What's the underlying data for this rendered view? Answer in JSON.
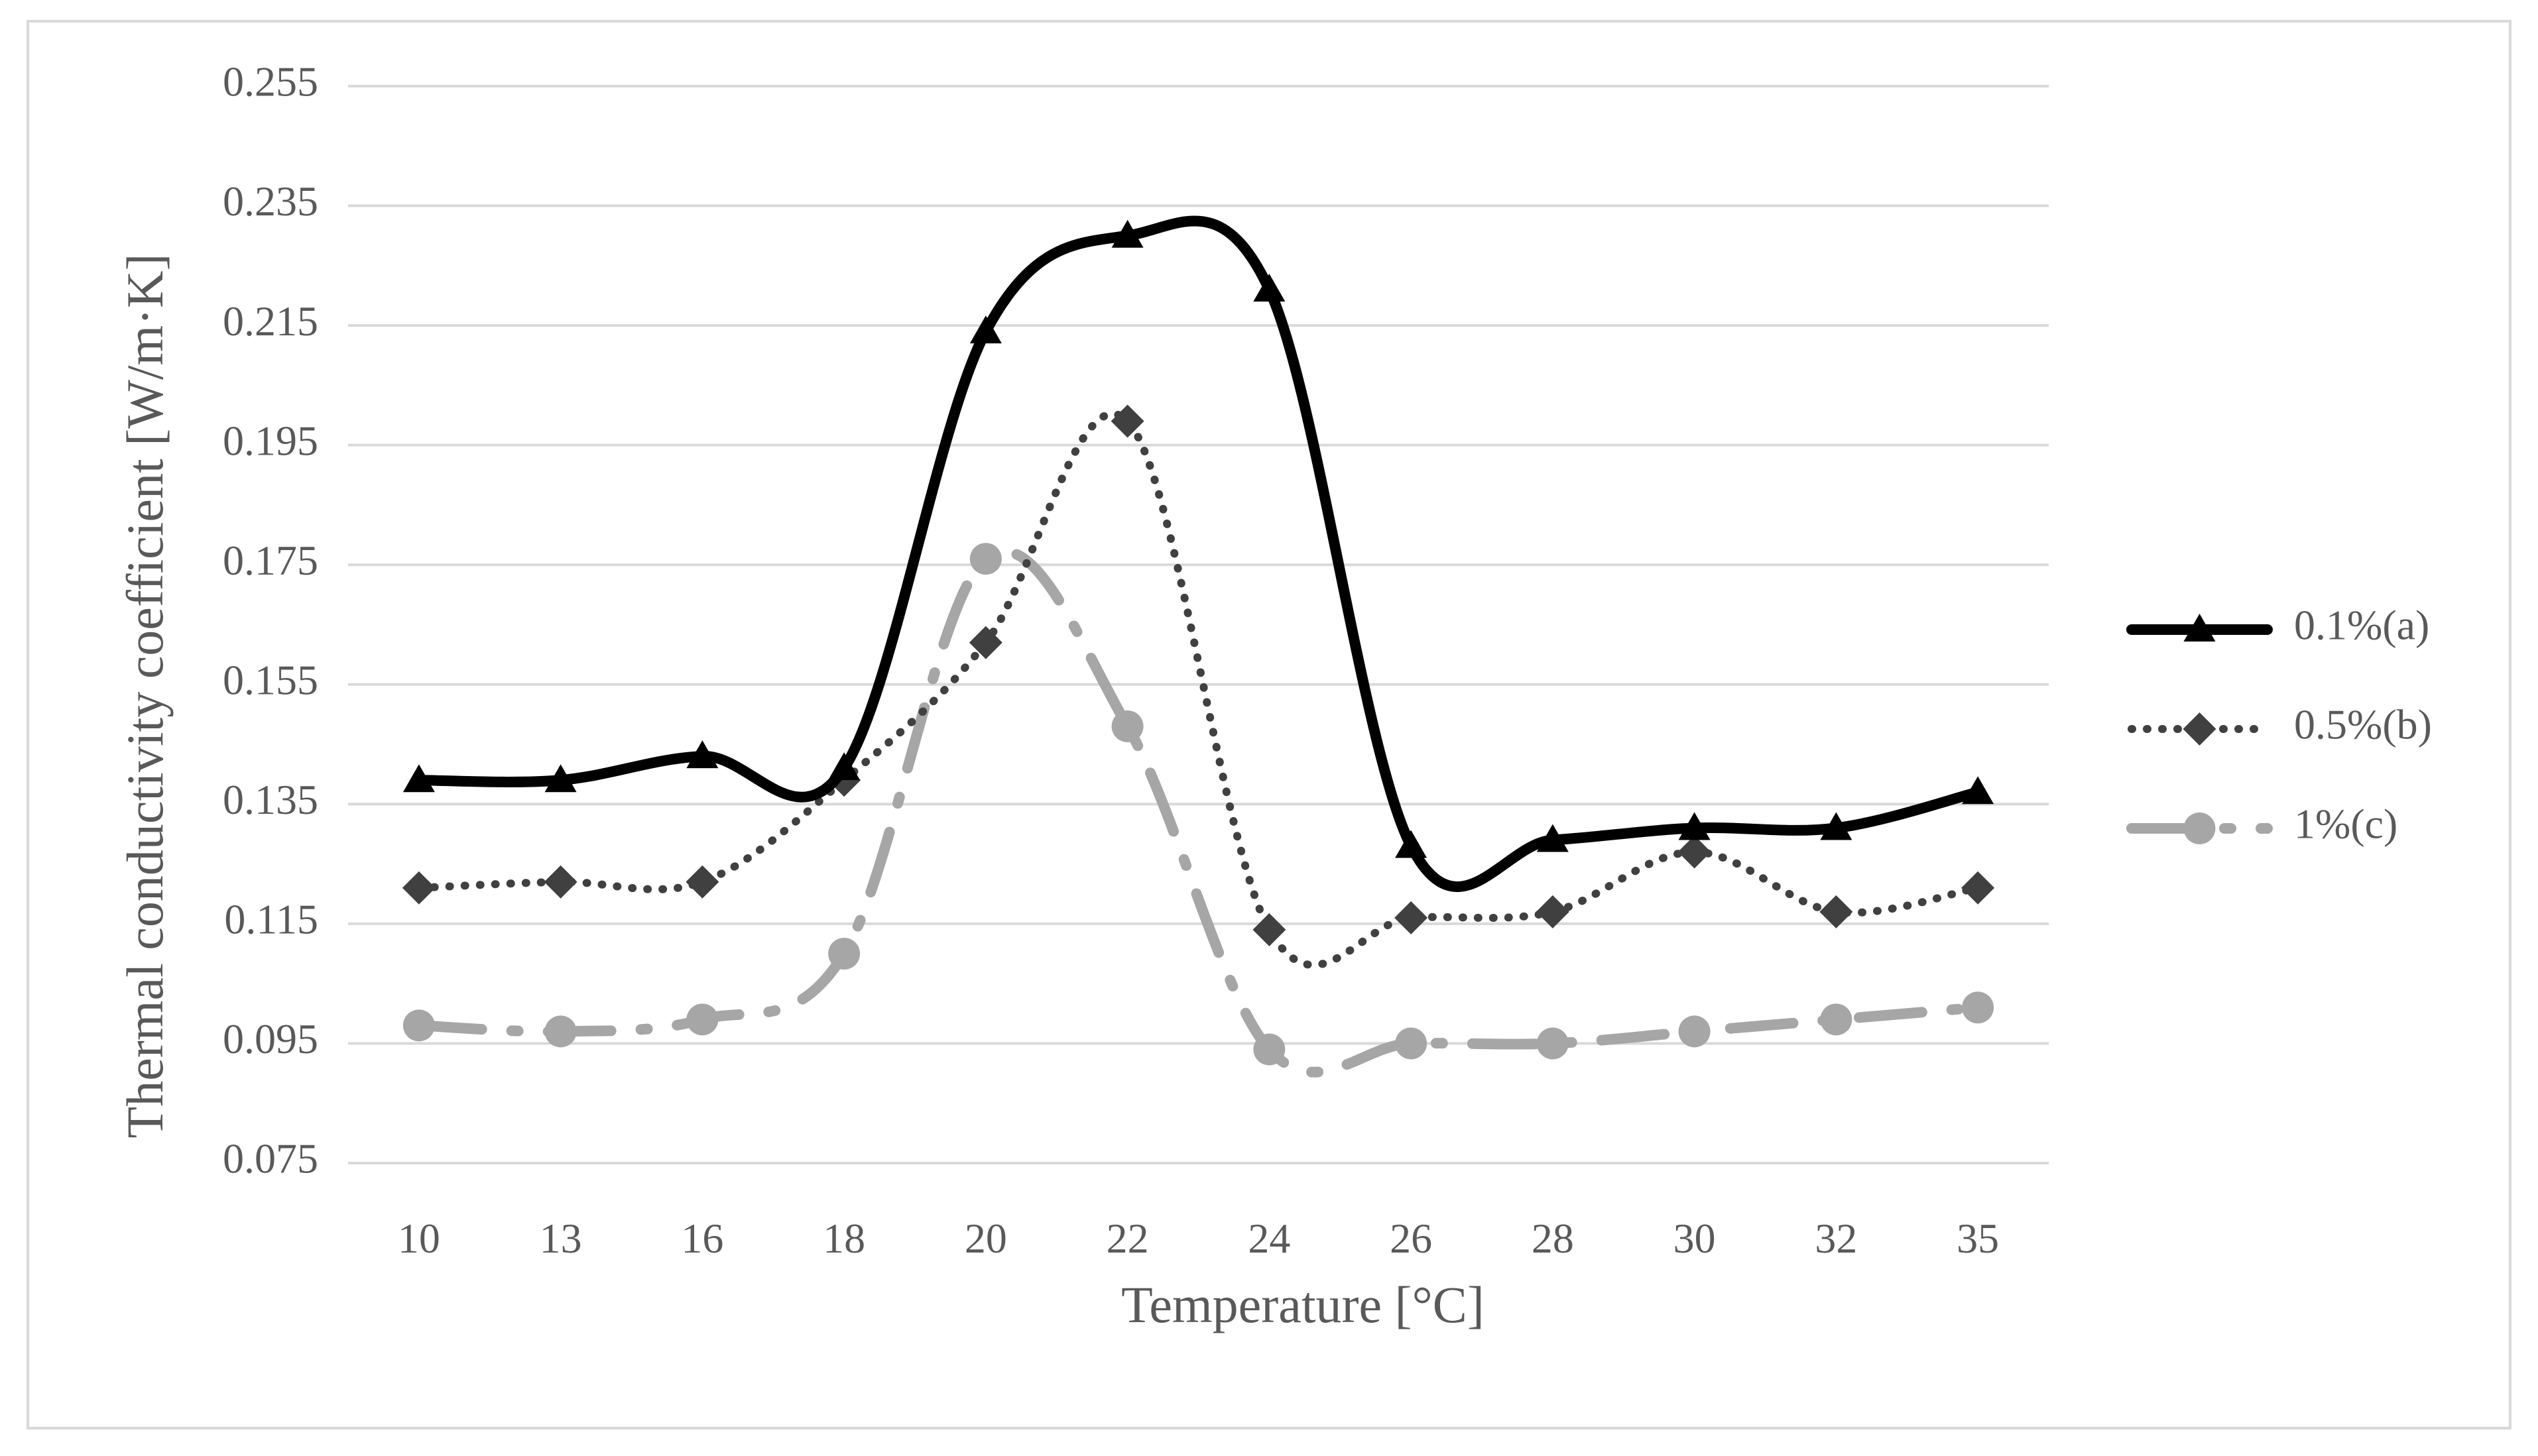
{
  "chart_data": {
    "type": "line",
    "title": "",
    "xlabel": "Temperature [°C]",
    "ylabel": "Thermal conductivity coefficient [W/m·K]",
    "categories": [
      "10",
      "13",
      "16",
      "18",
      "20",
      "22",
      "24",
      "26",
      "28",
      "30",
      "32",
      "35"
    ],
    "yticks": [
      "0.075",
      "0.095",
      "0.115",
      "0.135",
      "0.155",
      "0.175",
      "0.195",
      "0.215",
      "0.235",
      "0.255"
    ],
    "ylim": [
      0.075,
      0.255
    ],
    "grid": true,
    "legend_position": "right",
    "series": [
      {
        "name": "0.1%(a)",
        "marker": "triangle",
        "line_style": "solid",
        "color": "#000000",
        "values": [
          0.139,
          0.139,
          0.143,
          0.141,
          0.214,
          0.23,
          0.221,
          0.128,
          0.129,
          0.131,
          0.131,
          0.137
        ]
      },
      {
        "name": "0.5%(b)",
        "marker": "diamond",
        "line_style": "dotted",
        "color": "#404040",
        "values": [
          0.121,
          0.122,
          0.122,
          0.139,
          0.162,
          0.199,
          0.114,
          0.116,
          0.117,
          0.127,
          0.117,
          0.121
        ]
      },
      {
        "name": "1%(c)",
        "marker": "circle",
        "line_style": "dash-dot",
        "color": "#a6a6a6",
        "values": [
          0.098,
          0.097,
          0.099,
          0.11,
          0.176,
          0.148,
          0.094,
          0.095,
          0.095,
          0.097,
          0.099,
          0.101
        ]
      }
    ]
  }
}
